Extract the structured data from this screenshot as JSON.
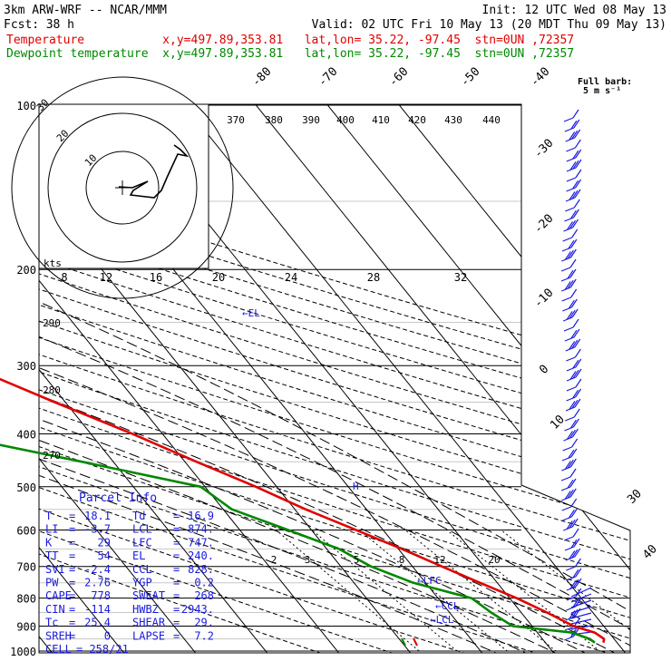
{
  "header": {
    "model": "3km ARW-WRF -- NCAR/MMM",
    "init": "Init: 12 UTC Wed 08 May 13",
    "fcst_label": "Fcst:",
    "fcst_value": "38 h",
    "valid": "Valid: 02 UTC Fri 10 May 13 (20 MDT Thu 09 May 13)",
    "line_temp": "Temperature           x,y=497.89,353.81   lat,lon= 35.22, -97.45  stn=0UN ,72357",
    "line_dew": "Dewpoint temperature  x,y=497.89,353.81   lat,lon= 35.22, -97.45  stn=0UN ,72357"
  },
  "barb_legend": {
    "title": "Full barb:",
    "value": "5 m s⁻¹"
  },
  "colors": {
    "temperature": "#e00000",
    "dewpoint": "#008800",
    "parcel": "#1a1adf",
    "barbs": "#1a1adf"
  },
  "chart_data": {
    "type": "line",
    "subtype": "skew-T log-P sounding",
    "pressure_ticks": [
      "100",
      "200",
      "300",
      "400",
      "500",
      "600",
      "700",
      "800",
      "900",
      "1000"
    ],
    "isotherm_labels": [
      "-80",
      "-70",
      "-60",
      "-50",
      "-40",
      "-30",
      "-20",
      "-10",
      "0",
      "10",
      "30",
      "40"
    ],
    "theta_top_labels": [
      "370",
      "380",
      "390",
      "400",
      "410",
      "420",
      "430",
      "440"
    ],
    "theta_side_labels": [
      "290",
      "280",
      "270"
    ],
    "mixing_ratio_labels": [
      "2",
      "3",
      "5",
      "8",
      "12",
      "20"
    ],
    "hodograph": {
      "kts_label": "kts",
      "speed_labels": [
        "8",
        "12",
        "16",
        "20",
        "24",
        "28",
        "32"
      ],
      "ring_labels": [
        "30",
        "20",
        "10"
      ]
    },
    "series": [
      {
        "name": "Temperature",
        "points": [
          [
            965,
            18.1
          ],
          [
            950,
            18.6
          ],
          [
            925,
            18.0
          ],
          [
            900,
            15.8
          ],
          [
            850,
            13.6
          ],
          [
            800,
            11.0
          ],
          [
            750,
            7.6
          ],
          [
            700,
            4.1
          ],
          [
            650,
            0.5
          ],
          [
            600,
            -3.8
          ],
          [
            550,
            -8.5
          ],
          [
            500,
            -12.9
          ],
          [
            450,
            -18.4
          ],
          [
            400,
            -24.2
          ],
          [
            350,
            -31.5
          ],
          [
            300,
            -39.5
          ],
          [
            275,
            -45.0
          ],
          [
            250,
            -49.5
          ],
          [
            225,
            -52.0
          ],
          [
            200,
            -54.3
          ],
          [
            175,
            -58.3
          ],
          [
            150,
            -62.0
          ],
          [
            130,
            -63.5
          ],
          [
            115,
            -63.8
          ],
          [
            100,
            -64.5
          ]
        ]
      },
      {
        "name": "Dewpoint temperature",
        "points": [
          [
            965,
            16.9
          ],
          [
            950,
            16.6
          ],
          [
            925,
            14.8
          ],
          [
            900,
            7.3
          ],
          [
            850,
            5.8
          ],
          [
            800,
            4.7
          ],
          [
            750,
            -1.7
          ],
          [
            700,
            -5.8
          ],
          [
            650,
            -8.3
          ],
          [
            600,
            -13.3
          ],
          [
            550,
            -18.8
          ],
          [
            500,
            -20.6
          ],
          [
            450,
            -34.4
          ],
          [
            400,
            -50.3
          ],
          [
            380,
            -55.0
          ],
          [
            360,
            -48.0
          ],
          [
            330,
            -43.7
          ],
          [
            300,
            -46.6
          ],
          [
            275,
            -52.0
          ],
          [
            250,
            -57.3
          ],
          [
            230,
            -61.5
          ],
          [
            200,
            -65.4
          ],
          [
            190,
            -70.2
          ],
          [
            170,
            -72.5
          ],
          [
            150,
            -74.1
          ],
          [
            125,
            -77.4
          ],
          [
            100,
            -81.0
          ]
        ]
      }
    ],
    "levels": [
      "←EL",
      "H",
      "←LFC",
      "←CCL",
      "←LCL"
    ]
  },
  "parcel": {
    "title": "Parcel Info",
    "rows": [
      [
        "T",
        "=",
        "18.1",
        "Td",
        "=",
        "16.9"
      ],
      [
        "LI",
        "=",
        "-3.7",
        "LCL",
        "=",
        "874."
      ],
      [
        "K",
        "=",
        "29",
        "LFC",
        "=",
        "747."
      ],
      [
        "TT",
        "=",
        "54",
        "EL",
        "=",
        "240."
      ],
      [
        "SVI",
        "=",
        "-2.4",
        "CCL",
        "=",
        "828."
      ],
      [
        "PW",
        "=",
        "2.76",
        "YGP",
        "=",
        "0.2"
      ],
      [
        "CAPE",
        "=",
        "778",
        "SWEAT",
        "=",
        "268"
      ],
      [
        "CIN",
        "=",
        "-114",
        "HWBZ",
        "=",
        "2943."
      ],
      [
        "Tc",
        "=",
        "25.4",
        "SHEAR",
        "=",
        "29."
      ],
      [
        "SREH",
        "=",
        "0",
        "LAPSE",
        "=",
        "7.2"
      ]
    ],
    "cell_label": "CELL",
    "cell_value": "=  258/21"
  }
}
